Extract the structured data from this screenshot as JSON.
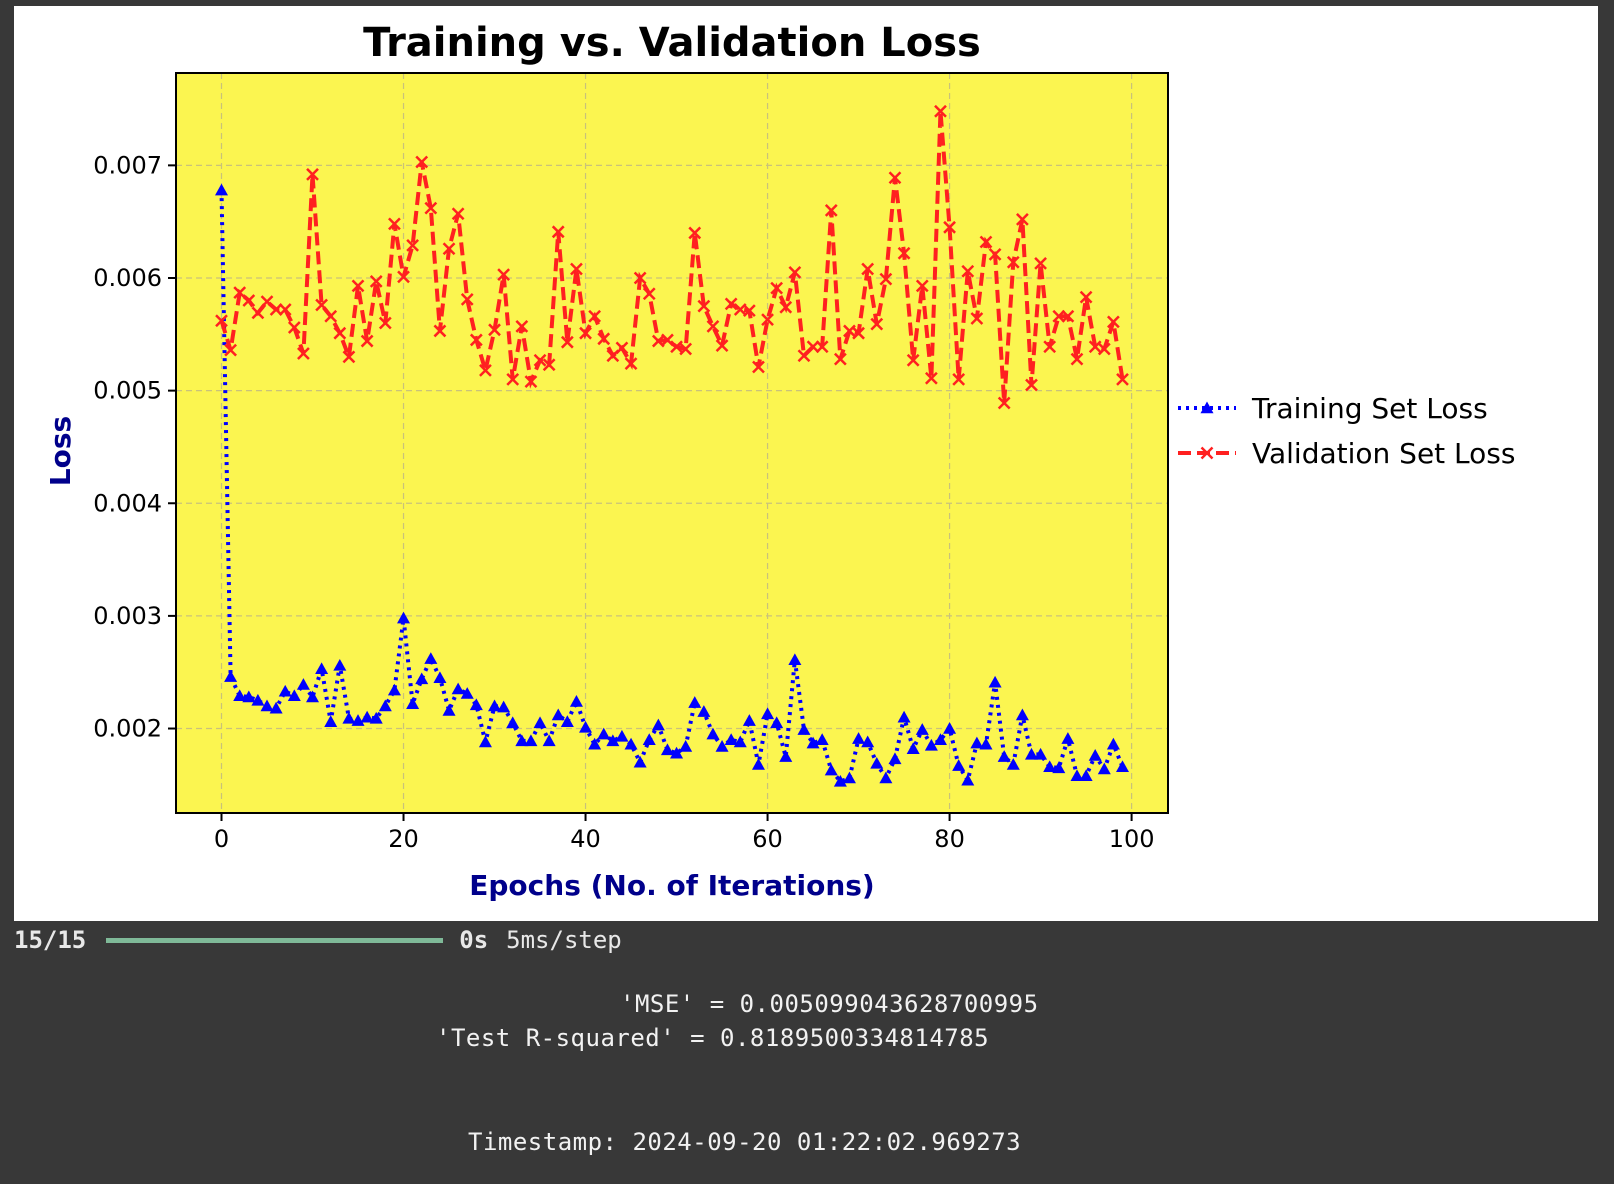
{
  "chart_data": {
    "type": "line",
    "title": "Training vs. Validation Loss",
    "xlabel": "Epochs (No. of Iterations)",
    "ylabel": "Loss",
    "xlim": [
      -5,
      104
    ],
    "ylim": [
      0.00125,
      0.00782
    ],
    "x_ticks": [
      0,
      20,
      40,
      60,
      80,
      100
    ],
    "y_ticks": [
      0.002,
      0.003,
      0.004,
      0.005,
      0.006,
      0.007
    ],
    "x_tick_labels": [
      "0",
      "20",
      "40",
      "60",
      "80",
      "100"
    ],
    "y_tick_labels": [
      "0.002",
      "0.003",
      "0.004",
      "0.005",
      "0.006",
      "0.007"
    ],
    "grid": true,
    "plot_background": "#fbf550",
    "legend_position": "right outside",
    "x": [
      0,
      1,
      2,
      3,
      4,
      5,
      6,
      7,
      8,
      9,
      10,
      11,
      12,
      13,
      14,
      15,
      16,
      17,
      18,
      19,
      20,
      21,
      22,
      23,
      24,
      25,
      26,
      27,
      28,
      29,
      30,
      31,
      32,
      33,
      34,
      35,
      36,
      37,
      38,
      39,
      40,
      41,
      42,
      43,
      44,
      45,
      46,
      47,
      48,
      49,
      50,
      51,
      52,
      53,
      54,
      55,
      56,
      57,
      58,
      59,
      60,
      61,
      62,
      63,
      64,
      65,
      66,
      67,
      68,
      69,
      70,
      71,
      72,
      73,
      74,
      75,
      76,
      77,
      78,
      79,
      80,
      81,
      82,
      83,
      84,
      85,
      86,
      87,
      88,
      89,
      90,
      91,
      92,
      93,
      94,
      95,
      96,
      97,
      98,
      99
    ],
    "series": [
      {
        "name": "Training Set Loss",
        "color": "#0000ff",
        "marker": "triangle-up",
        "linestyle": "dotted",
        "values": [
          0.00678,
          0.00246,
          0.00229,
          0.00228,
          0.00225,
          0.0022,
          0.00218,
          0.00233,
          0.00229,
          0.00239,
          0.00228,
          0.00253,
          0.00206,
          0.00256,
          0.00209,
          0.00207,
          0.0021,
          0.00209,
          0.0022,
          0.00234,
          0.00298,
          0.00222,
          0.00244,
          0.00262,
          0.00245,
          0.00216,
          0.00235,
          0.00231,
          0.00221,
          0.00188,
          0.0022,
          0.00219,
          0.00205,
          0.00189,
          0.00189,
          0.00205,
          0.00189,
          0.00212,
          0.00206,
          0.00224,
          0.00201,
          0.00186,
          0.00195,
          0.00189,
          0.00193,
          0.00186,
          0.0017,
          0.0019,
          0.00203,
          0.00181,
          0.00178,
          0.00184,
          0.00223,
          0.00215,
          0.00195,
          0.00184,
          0.0019,
          0.00188,
          0.00207,
          0.00168,
          0.00213,
          0.00205,
          0.00175,
          0.00261,
          0.00199,
          0.00187,
          0.0019,
          0.00163,
          0.00153,
          0.00156,
          0.00191,
          0.00188,
          0.00169,
          0.00156,
          0.00173,
          0.0021,
          0.00182,
          0.00199,
          0.00185,
          0.0019,
          0.002,
          0.00167,
          0.00154,
          0.00187,
          0.00186,
          0.00241,
          0.00175,
          0.00168,
          0.00212,
          0.00177,
          0.00177,
          0.00166,
          0.00165,
          0.00191,
          0.00158,
          0.00158,
          0.00176,
          0.00164,
          0.00186,
          0.00166
        ]
      },
      {
        "name": "Validation Set Loss",
        "color": "#ff2020",
        "marker": "x",
        "linestyle": "dashed",
        "values": [
          0.00562,
          0.00536,
          0.00587,
          0.0058,
          0.00569,
          0.00579,
          0.00572,
          0.00572,
          0.00556,
          0.00533,
          0.00692,
          0.00576,
          0.00566,
          0.00551,
          0.0053,
          0.00593,
          0.00544,
          0.00597,
          0.0056,
          0.00648,
          0.00601,
          0.00629,
          0.00703,
          0.00662,
          0.00553,
          0.00626,
          0.00657,
          0.00581,
          0.00545,
          0.00518,
          0.00554,
          0.00603,
          0.0051,
          0.00557,
          0.00508,
          0.00527,
          0.00523,
          0.00641,
          0.00543,
          0.00608,
          0.00551,
          0.00566,
          0.00546,
          0.00531,
          0.00538,
          0.00524,
          0.006,
          0.00586,
          0.00544,
          0.00545,
          0.00539,
          0.00537,
          0.0064,
          0.00575,
          0.00557,
          0.0054,
          0.00577,
          0.00572,
          0.00571,
          0.00521,
          0.00563,
          0.00591,
          0.00574,
          0.00605,
          0.00531,
          0.00539,
          0.00539,
          0.0066,
          0.00528,
          0.00553,
          0.00551,
          0.00608,
          0.00559,
          0.00599,
          0.00689,
          0.00622,
          0.00527,
          0.00593,
          0.00511,
          0.00748,
          0.00645,
          0.0051,
          0.00606,
          0.00564,
          0.00632,
          0.00621,
          0.00489,
          0.00614,
          0.00652,
          0.00505,
          0.00613,
          0.00539,
          0.00566,
          0.00566,
          0.00528,
          0.00583,
          0.00539,
          0.00537,
          0.00561,
          0.0051
        ]
      }
    ]
  },
  "output": {
    "progress_count": "15/15",
    "progress_fraction": 1.0,
    "progress_time": "0s",
    "progress_step": "5ms/step",
    "mse_line": "'MSE' = 0.005099043628700995",
    "r2_line": "'Test R-squared' = 0.8189500334814785",
    "timestamp_line": "Timestamp: 2024-09-20 01:22:02.969273"
  }
}
